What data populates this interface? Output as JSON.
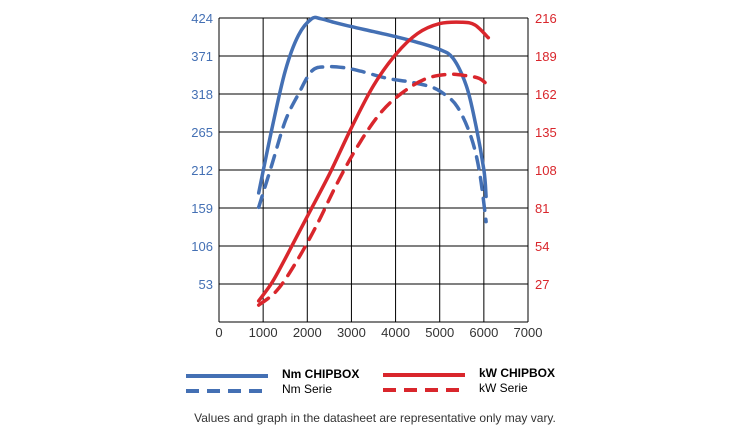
{
  "chart_data": {
    "type": "line",
    "x_axis": {
      "min": 0,
      "max": 7000,
      "ticks": [
        0,
        1000,
        2000,
        3000,
        4000,
        5000,
        6000,
        7000
      ]
    },
    "y_left": {
      "min": 0,
      "max": 424,
      "ticks": [
        53,
        106,
        159,
        212,
        265,
        318,
        371,
        424
      ],
      "color": "#4470b4"
    },
    "y_right": {
      "min": 0,
      "max": 216,
      "ticks": [
        27,
        54,
        81,
        108,
        135,
        162,
        189,
        216
      ],
      "color": "#d9262c"
    },
    "grid": true,
    "legend_position": "bottom",
    "series": [
      {
        "name": "Nm CHIPBOX",
        "axis": "left",
        "color": "#4470b4",
        "dash": false,
        "legend_bold": true,
        "points": [
          [
            900,
            180
          ],
          [
            1200,
            270
          ],
          [
            1500,
            350
          ],
          [
            1800,
            400
          ],
          [
            2100,
            423
          ],
          [
            2300,
            423
          ],
          [
            2600,
            418
          ],
          [
            3000,
            412
          ],
          [
            3500,
            405
          ],
          [
            4000,
            398
          ],
          [
            4500,
            390
          ],
          [
            5000,
            380
          ],
          [
            5300,
            368
          ],
          [
            5600,
            330
          ],
          [
            5800,
            280
          ],
          [
            6000,
            212
          ],
          [
            6050,
            175
          ]
        ]
      },
      {
        "name": "Nm Serie",
        "axis": "left",
        "color": "#4470b4",
        "dash": true,
        "legend_bold": false,
        "points": [
          [
            900,
            160
          ],
          [
            1200,
            220
          ],
          [
            1500,
            280
          ],
          [
            1800,
            318
          ],
          [
            2100,
            350
          ],
          [
            2400,
            356
          ],
          [
            2800,
            355
          ],
          [
            3200,
            350
          ],
          [
            3800,
            340
          ],
          [
            4300,
            335
          ],
          [
            4800,
            328
          ],
          [
            5100,
            318
          ],
          [
            5400,
            300
          ],
          [
            5700,
            260
          ],
          [
            5900,
            210
          ],
          [
            6050,
            140
          ]
        ]
      },
      {
        "name": "kW CHIPBOX",
        "axis": "right",
        "color": "#d9262c",
        "dash": false,
        "legend_bold": true,
        "points": [
          [
            900,
            15
          ],
          [
            1200,
            28
          ],
          [
            1500,
            45
          ],
          [
            2000,
            75
          ],
          [
            2500,
            105
          ],
          [
            3000,
            138
          ],
          [
            3500,
            168
          ],
          [
            4000,
            190
          ],
          [
            4500,
            205
          ],
          [
            5000,
            212
          ],
          [
            5500,
            213
          ],
          [
            5800,
            211
          ],
          [
            6100,
            202
          ]
        ]
      },
      {
        "name": "kW Serie",
        "axis": "right",
        "color": "#d9262c",
        "dash": true,
        "legend_bold": false,
        "points": [
          [
            900,
            12
          ],
          [
            1300,
            22
          ],
          [
            1700,
            40
          ],
          [
            2200,
            68
          ],
          [
            2700,
            100
          ],
          [
            3200,
            128
          ],
          [
            3700,
            150
          ],
          [
            4200,
            164
          ],
          [
            4700,
            173
          ],
          [
            5200,
            176
          ],
          [
            5600,
            175
          ],
          [
            5900,
            173
          ],
          [
            6100,
            168
          ]
        ]
      }
    ],
    "footnote": "Values and graph in the datasheet are representative only may vary."
  }
}
